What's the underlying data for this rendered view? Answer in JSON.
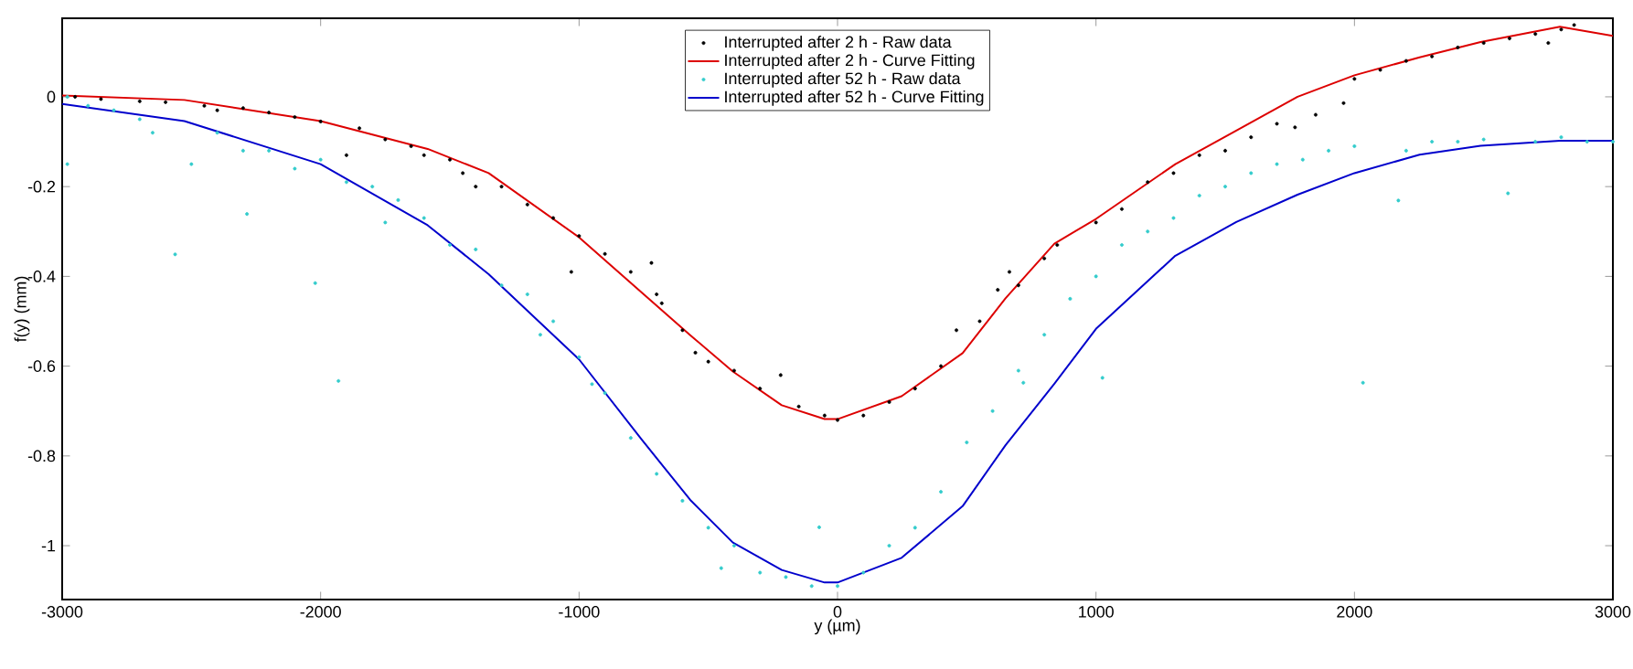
{
  "chart_data": {
    "type": "scatter",
    "xlabel": "y (µm)",
    "ylabel": "f(y) (mm)",
    "xlim": [
      -3000,
      3000
    ],
    "ylim": [
      -1.12,
      0.175
    ],
    "xticks": [
      -3000,
      -2000,
      -1000,
      0,
      1000,
      2000,
      3000
    ],
    "yticks": [
      -1,
      -0.8,
      -0.6,
      -0.4,
      -0.2,
      0
    ],
    "legend": "top",
    "grid": false,
    "series": [
      {
        "name": "Interrupted after 2 h - Raw data",
        "marker": "circle",
        "color": "#000000",
        "x": [
          -2950,
          -2850,
          -2700,
          -2600,
          -2450,
          -2400,
          -2300,
          -2200,
          -2100,
          -2000,
          -1900,
          -1850,
          -1750,
          -1650,
          -1600,
          -1500,
          -1450,
          -1400,
          -1300,
          -1200,
          -1100,
          -1000,
          -1030,
          -900,
          -800,
          -720,
          -700,
          -680,
          -600,
          -550,
          -500,
          -400,
          -300,
          -220,
          -150,
          -50,
          0,
          100,
          200,
          300,
          400,
          460,
          550,
          620,
          665,
          700,
          800,
          850,
          1000,
          1100,
          1200,
          1300,
          1400,
          1500,
          1600,
          1700,
          1770,
          1850,
          1958,
          2000,
          2100,
          2200,
          2300,
          2400,
          2500,
          2600,
          2700,
          2750,
          2800,
          2850
        ],
        "values": [
          0.0,
          -0.005,
          -0.01,
          -0.012,
          -0.02,
          -0.03,
          -0.025,
          -0.035,
          -0.045,
          -0.055,
          -0.13,
          -0.07,
          -0.095,
          -0.11,
          -0.13,
          -0.14,
          -0.17,
          -0.2,
          -0.2,
          -0.24,
          -0.27,
          -0.31,
          -0.39,
          -0.35,
          -0.39,
          -0.37,
          -0.44,
          -0.46,
          -0.52,
          -0.57,
          -0.59,
          -0.61,
          -0.65,
          -0.62,
          -0.69,
          -0.71,
          -0.72,
          -0.71,
          -0.68,
          -0.65,
          -0.6,
          -0.52,
          -0.5,
          -0.43,
          -0.39,
          -0.42,
          -0.36,
          -0.33,
          -0.28,
          -0.25,
          -0.19,
          -0.17,
          -0.13,
          -0.12,
          -0.09,
          -0.06,
          -0.068,
          -0.04,
          -0.014,
          0.04,
          0.06,
          0.08,
          0.09,
          0.11,
          0.12,
          0.13,
          0.14,
          0.12,
          0.15,
          0.16
        ]
      },
      {
        "name": "Interrupted after 2 h - Curve Fitting",
        "type": "line",
        "marker": "none",
        "color": "#dd0000",
        "x": [
          -3000,
          -2527,
          -2000,
          -1586,
          -1350,
          -1000,
          -760,
          -570,
          -405,
          -216,
          -50,
          0,
          248,
          484,
          650,
          839,
          1000,
          1307,
          1543,
          1780,
          2000,
          2252,
          2488,
          2795,
          3000
        ],
        "values": [
          0.003,
          -0.007,
          -0.054,
          -0.116,
          -0.17,
          -0.313,
          -0.435,
          -0.531,
          -0.612,
          -0.687,
          -0.718,
          -0.718,
          -0.667,
          -0.571,
          -0.449,
          -0.327,
          -0.272,
          -0.15,
          -0.075,
          0.0,
          0.048,
          0.088,
          0.122,
          0.156,
          0.136
        ]
      },
      {
        "name": "Interrupted after 52 h - Raw data",
        "marker": "circle",
        "color": "#33cccc",
        "x": [
          -2980,
          -2980,
          -2900,
          -2800,
          -2700,
          -2650,
          -2563,
          -2500,
          -2400,
          -2285,
          -2300,
          -2200,
          -2100,
          -2021,
          -2000,
          -1931,
          -1900,
          -1800,
          -1750,
          -1700,
          -1600,
          -1500,
          -1400,
          -1300,
          -1200,
          -1150,
          -1100,
          -1000,
          -950,
          -900,
          -800,
          -700,
          -600,
          -500,
          -450,
          -400,
          -300,
          -200,
          -100,
          -71,
          0,
          100,
          200,
          300,
          400,
          500,
          600,
          700,
          719,
          800,
          900,
          1025,
          1000,
          1100,
          1200,
          1300,
          1400,
          1500,
          1600,
          1700,
          1800,
          1900,
          2033,
          2000,
          2170,
          2200,
          2300,
          2400,
          2500,
          2594,
          2700,
          2800,
          2900,
          3000
        ],
        "values": [
          0.0,
          -0.15,
          -0.02,
          -0.03,
          -0.05,
          -0.08,
          -0.351,
          -0.15,
          -0.08,
          -0.261,
          -0.12,
          -0.12,
          -0.16,
          -0.415,
          -0.14,
          -0.633,
          -0.19,
          -0.2,
          -0.28,
          -0.23,
          -0.27,
          -0.33,
          -0.34,
          -0.42,
          -0.44,
          -0.53,
          -0.5,
          -0.58,
          -0.64,
          -0.66,
          -0.76,
          -0.84,
          -0.9,
          -0.96,
          -1.05,
          -1.0,
          -1.06,
          -1.07,
          -1.09,
          -0.959,
          -1.09,
          -1.06,
          -1.0,
          -0.96,
          -0.88,
          -0.77,
          -0.7,
          -0.61,
          -0.637,
          -0.53,
          -0.45,
          -0.626,
          -0.4,
          -0.33,
          -0.3,
          -0.27,
          -0.22,
          -0.2,
          -0.17,
          -0.15,
          -0.14,
          -0.12,
          -0.637,
          -0.11,
          -0.231,
          -0.12,
          -0.1,
          -0.1,
          -0.095,
          -0.215,
          -0.1,
          -0.09,
          -0.1,
          -0.1
        ]
      },
      {
        "name": "Interrupted after 52 h - Curve Fitting",
        "type": "line",
        "marker": "none",
        "color": "#0000cc",
        "x": [
          -3000,
          -2527,
          -2000,
          -1586,
          -1350,
          -1000,
          -760,
          -570,
          -405,
          -216,
          -50,
          0,
          248,
          484,
          650,
          839,
          1000,
          1307,
          1543,
          1780,
          2000,
          2252,
          2488,
          2795,
          3000
        ],
        "values": [
          -0.016,
          -0.054,
          -0.15,
          -0.286,
          -0.395,
          -0.585,
          -0.762,
          -0.898,
          -0.993,
          -1.054,
          -1.082,
          -1.082,
          -1.027,
          -0.912,
          -0.776,
          -0.639,
          -0.517,
          -0.354,
          -0.279,
          -0.218,
          -0.17,
          -0.129,
          -0.109,
          -0.098,
          -0.098
        ]
      }
    ]
  }
}
